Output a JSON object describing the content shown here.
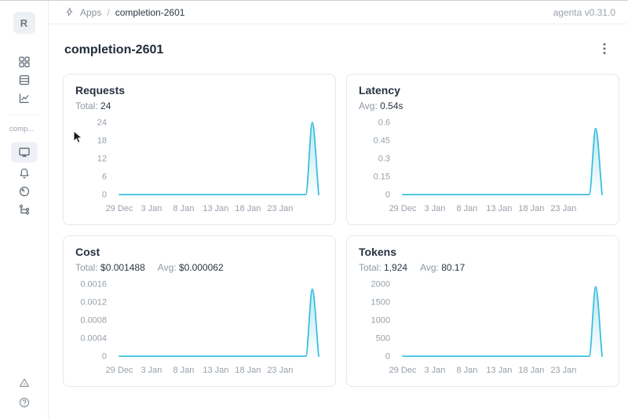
{
  "header": {
    "breadcrumb": {
      "icon": "bolt-icon",
      "section": "Apps",
      "separator": "/",
      "current": "completion-2601"
    },
    "version": "agenta v0.31.0"
  },
  "sidebar": {
    "workspace_initial": "R",
    "app_label_truncated": "comp...",
    "nav_icons_top": [
      "apps-grid-icon",
      "registry-table-icon",
      "observability-chart-icon"
    ],
    "app_nav_icons": [
      "overview-monitor-icon",
      "notifications-bell-icon",
      "endpoints-gauge-icon",
      "traces-tree-icon"
    ],
    "selected_app_nav": "overview-monitor-icon",
    "footer_icons": [
      "alerts-triangle-icon",
      "help-question-icon"
    ]
  },
  "page": {
    "title": "completion-2601",
    "menu_icon": "kebab-menu-icon"
  },
  "colors": {
    "accent_line": "#3bbfdd",
    "selected_nav_bg": "#edf1f6",
    "axis_text": "#97a0aa"
  },
  "cards": [
    {
      "title": "Requests",
      "stats": [
        {
          "label": "Total:",
          "value": "24"
        }
      ]
    },
    {
      "title": "Latency",
      "stats": [
        {
          "label": "Avg:",
          "value": "0.54s"
        }
      ]
    },
    {
      "title": "Cost",
      "stats": [
        {
          "label": "Total:",
          "value": "$0.001488"
        },
        {
          "label": "Avg:",
          "value": "$0.000062"
        }
      ]
    },
    {
      "title": "Tokens",
      "stats": [
        {
          "label": "Total:",
          "value": "1,924"
        },
        {
          "label": "Avg:",
          "value": "80.17"
        }
      ]
    }
  ],
  "chart_data": [
    {
      "type": "area",
      "title": "Requests",
      "x": [
        "29 Dec",
        "30 Dec",
        "31 Dec",
        "1 Jan",
        "2 Jan",
        "3 Jan",
        "4 Jan",
        "5 Jan",
        "6 Jan",
        "7 Jan",
        "8 Jan",
        "9 Jan",
        "10 Jan",
        "11 Jan",
        "12 Jan",
        "13 Jan",
        "14 Jan",
        "15 Jan",
        "16 Jan",
        "17 Jan",
        "18 Jan",
        "19 Jan",
        "20 Jan",
        "21 Jan",
        "22 Jan",
        "23 Jan",
        "24 Jan",
        "25 Jan",
        "26 Jan",
        "27 Jan",
        "28 Jan",
        "29 Jan"
      ],
      "values": [
        0,
        0,
        0,
        0,
        0,
        0,
        0,
        0,
        0,
        0,
        0,
        0,
        0,
        0,
        0,
        0,
        0,
        0,
        0,
        0,
        0,
        0,
        0,
        0,
        0,
        0,
        0,
        0,
        0,
        0,
        24,
        0
      ],
      "y_max": 24,
      "y_tick_values": [
        0,
        6,
        12,
        18,
        24
      ],
      "y_tick_labels": [
        "0",
        "6",
        "12",
        "18",
        "24"
      ],
      "x_tick_indices": [
        0,
        5,
        10,
        15,
        20,
        25
      ],
      "x_tick_labels": [
        "29 Dec",
        "3 Jan",
        "8 Jan",
        "13 Jan",
        "18 Jan",
        "23 Jan"
      ],
      "line_color": "#3bbfdd",
      "grid": false,
      "legend": false
    },
    {
      "type": "area",
      "title": "Latency",
      "x": [
        "29 Dec",
        "30 Dec",
        "31 Dec",
        "1 Jan",
        "2 Jan",
        "3 Jan",
        "4 Jan",
        "5 Jan",
        "6 Jan",
        "7 Jan",
        "8 Jan",
        "9 Jan",
        "10 Jan",
        "11 Jan",
        "12 Jan",
        "13 Jan",
        "14 Jan",
        "15 Jan",
        "16 Jan",
        "17 Jan",
        "18 Jan",
        "19 Jan",
        "20 Jan",
        "21 Jan",
        "22 Jan",
        "23 Jan",
        "24 Jan",
        "25 Jan",
        "26 Jan",
        "27 Jan",
        "28 Jan",
        "29 Jan"
      ],
      "values": [
        0,
        0,
        0,
        0,
        0,
        0,
        0,
        0,
        0,
        0,
        0,
        0,
        0,
        0,
        0,
        0,
        0,
        0,
        0,
        0,
        0,
        0,
        0,
        0,
        0,
        0,
        0,
        0,
        0,
        0,
        0.55,
        0
      ],
      "y_max": 0.6,
      "y_tick_values": [
        0,
        0.15,
        0.3,
        0.45,
        0.6
      ],
      "y_tick_labels": [
        "0",
        "0.15",
        "0.3",
        "0.45",
        "0.6"
      ],
      "x_tick_indices": [
        0,
        5,
        10,
        15,
        20,
        25
      ],
      "x_tick_labels": [
        "29 Dec",
        "3 Jan",
        "8 Jan",
        "13 Jan",
        "18 Jan",
        "23 Jan"
      ],
      "line_color": "#3bbfdd",
      "grid": false,
      "legend": false
    },
    {
      "type": "area",
      "title": "Cost",
      "x": [
        "29 Dec",
        "30 Dec",
        "31 Dec",
        "1 Jan",
        "2 Jan",
        "3 Jan",
        "4 Jan",
        "5 Jan",
        "6 Jan",
        "7 Jan",
        "8 Jan",
        "9 Jan",
        "10 Jan",
        "11 Jan",
        "12 Jan",
        "13 Jan",
        "14 Jan",
        "15 Jan",
        "16 Jan",
        "17 Jan",
        "18 Jan",
        "19 Jan",
        "20 Jan",
        "21 Jan",
        "22 Jan",
        "23 Jan",
        "24 Jan",
        "25 Jan",
        "26 Jan",
        "27 Jan",
        "28 Jan",
        "29 Jan"
      ],
      "values": [
        0,
        0,
        0,
        0,
        0,
        0,
        0,
        0,
        0,
        0,
        0,
        0,
        0,
        0,
        0,
        0,
        0,
        0,
        0,
        0,
        0,
        0,
        0,
        0,
        0,
        0,
        0,
        0,
        0,
        0,
        0.001488,
        0
      ],
      "y_max": 0.0016,
      "y_tick_values": [
        0,
        0.0004,
        0.0008,
        0.0012,
        0.0016
      ],
      "y_tick_labels": [
        "0",
        "0.0004",
        "0.0008",
        "0.0012",
        "0.0016"
      ],
      "x_tick_indices": [
        0,
        5,
        10,
        15,
        20,
        25
      ],
      "x_tick_labels": [
        "29 Dec",
        "3 Jan",
        "8 Jan",
        "13 Jan",
        "18 Jan",
        "23 Jan"
      ],
      "line_color": "#3bbfdd",
      "grid": false,
      "legend": false
    },
    {
      "type": "area",
      "title": "Tokens",
      "x": [
        "29 Dec",
        "30 Dec",
        "31 Dec",
        "1 Jan",
        "2 Jan",
        "3 Jan",
        "4 Jan",
        "5 Jan",
        "6 Jan",
        "7 Jan",
        "8 Jan",
        "9 Jan",
        "10 Jan",
        "11 Jan",
        "12 Jan",
        "13 Jan",
        "14 Jan",
        "15 Jan",
        "16 Jan",
        "17 Jan",
        "18 Jan",
        "19 Jan",
        "20 Jan",
        "21 Jan",
        "22 Jan",
        "23 Jan",
        "24 Jan",
        "25 Jan",
        "26 Jan",
        "27 Jan",
        "28 Jan",
        "29 Jan"
      ],
      "values": [
        0,
        0,
        0,
        0,
        0,
        0,
        0,
        0,
        0,
        0,
        0,
        0,
        0,
        0,
        0,
        0,
        0,
        0,
        0,
        0,
        0,
        0,
        0,
        0,
        0,
        0,
        0,
        0,
        0,
        0,
        1924,
        0
      ],
      "y_max": 2000,
      "y_tick_values": [
        0,
        500,
        1000,
        1500,
        2000
      ],
      "y_tick_labels": [
        "0",
        "500",
        "1000",
        "1500",
        "2000"
      ],
      "x_tick_indices": [
        0,
        5,
        10,
        15,
        20,
        25
      ],
      "x_tick_labels": [
        "29 Dec",
        "3 Jan",
        "8 Jan",
        "13 Jan",
        "18 Jan",
        "23 Jan"
      ],
      "line_color": "#3bbfdd",
      "grid": false,
      "legend": false
    }
  ]
}
